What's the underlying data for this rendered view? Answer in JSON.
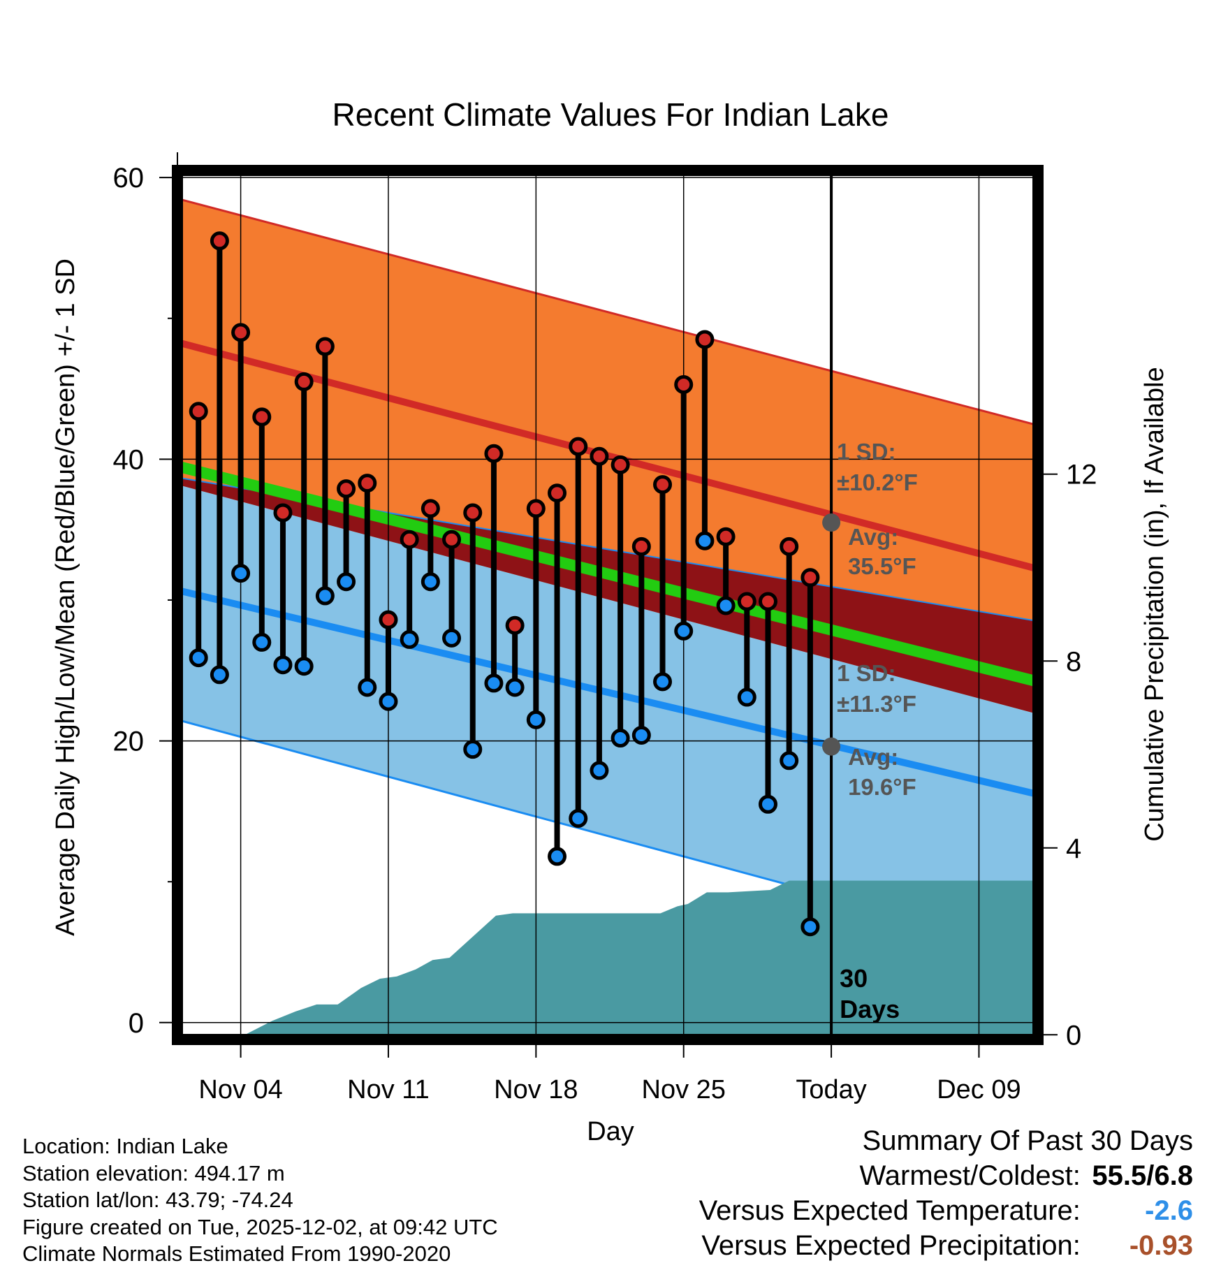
{
  "chart_data": {
    "type": "line",
    "title": "Recent Climate Values For Indian Lake",
    "xlabel": "Day",
    "ylabel": "Average Daily High/Low/Mean (Red/Blue/Green) +/- 1 SD",
    "y2label": "Cumulative Precipitation (in), If Available",
    "ylim": [
      -1.2,
      60.5
    ],
    "y2lim": [
      -0.1,
      18.5
    ],
    "xlim": [
      0,
      40.8
    ],
    "today_day": 31,
    "xticks": [
      {
        "day": 3,
        "label": "Nov 04"
      },
      {
        "day": 10,
        "label": "Nov 11"
      },
      {
        "day": 17,
        "label": "Nov 18"
      },
      {
        "day": 24,
        "label": "Nov 25"
      },
      {
        "day": 31,
        "label": "Today"
      },
      {
        "day": 38,
        "label": "Dec 09"
      }
    ],
    "yticks": [
      0,
      20,
      40,
      60
    ],
    "y2ticks": [
      0,
      4,
      8,
      12
    ],
    "normals": {
      "high_mean": {
        "start": 48.3,
        "end": 32.2
      },
      "high_upper": {
        "start": 58.5,
        "end": 42.4
      },
      "low_mean": {
        "start": 30.7,
        "end": 16.2
      },
      "low_lower": {
        "start": 21.5,
        "end": 5.0
      },
      "low_upper": {
        "start": 38.7,
        "end": 28.5
      },
      "mean": {
        "start": 39.5,
        "end": 24.2
      },
      "high_lower": {
        "start": 38.2,
        "end": 21.9
      }
    },
    "annotations": {
      "high_sd_label": "1 SD:",
      "high_sd_value": "±10.2°F",
      "high_avg_label": "Avg:",
      "high_avg_value": "35.5°F",
      "high_avg": 35.5,
      "low_sd_label": "1 SD:",
      "low_sd_value": "±11.3°F",
      "low_avg_label": "Avg:",
      "low_avg_value": "19.6°F",
      "low_avg": 19.6,
      "days_line1": "30",
      "days_line2": "Days"
    },
    "days": [
      1,
      2,
      3,
      4,
      5,
      6,
      7,
      8,
      9,
      10,
      11,
      12,
      13,
      14,
      15,
      16,
      17,
      18,
      19,
      20,
      21,
      22,
      23,
      24,
      25,
      26,
      27,
      28,
      29,
      30
    ],
    "highs": [
      43.4,
      55.5,
      49.0,
      43.0,
      36.2,
      45.5,
      48.0,
      37.9,
      38.3,
      28.6,
      34.3,
      36.5,
      34.3,
      36.2,
      40.4,
      28.2,
      36.5,
      37.6,
      40.9,
      40.2,
      39.6,
      33.8,
      38.2,
      45.3,
      48.5,
      34.5,
      29.9,
      29.9,
      33.8,
      31.6
    ],
    "lows": [
      25.9,
      24.7,
      31.9,
      27.0,
      25.4,
      25.3,
      30.3,
      31.3,
      23.8,
      22.8,
      27.2,
      31.3,
      27.3,
      19.4,
      24.1,
      23.8,
      21.5,
      11.8,
      14.5,
      17.9,
      20.2,
      20.4,
      24.2,
      27.8,
      34.2,
      29.6,
      23.1,
      15.5,
      18.6,
      6.8
    ],
    "precip_cumulative": [
      {
        "day": 0.3,
        "value": 0
      },
      {
        "day": 3.2,
        "value": 0
      },
      {
        "day": 4.5,
        "value": 0.3
      },
      {
        "day": 5.6,
        "value": 0.5
      },
      {
        "day": 6.6,
        "value": 0.65
      },
      {
        "day": 7.6,
        "value": 0.65
      },
      {
        "day": 8.7,
        "value": 1.0
      },
      {
        "day": 9.6,
        "value": 1.2
      },
      {
        "day": 10.4,
        "value": 1.25
      },
      {
        "day": 11.3,
        "value": 1.4
      },
      {
        "day": 12.1,
        "value": 1.6
      },
      {
        "day": 12.9,
        "value": 1.65
      },
      {
        "day": 14.0,
        "value": 2.1
      },
      {
        "day": 15.1,
        "value": 2.55
      },
      {
        "day": 15.9,
        "value": 2.6
      },
      {
        "day": 19.0,
        "value": 2.6
      },
      {
        "day": 20.8,
        "value": 2.6
      },
      {
        "day": 22.9,
        "value": 2.6
      },
      {
        "day": 23.7,
        "value": 2.75
      },
      {
        "day": 24.2,
        "value": 2.8
      },
      {
        "day": 25.1,
        "value": 3.05
      },
      {
        "day": 26.1,
        "value": 3.05
      },
      {
        "day": 28.1,
        "value": 3.1
      },
      {
        "day": 29.0,
        "value": 3.3
      },
      {
        "day": 40.8,
        "value": 3.3
      }
    ]
  },
  "info": {
    "location": "Location: Indian Lake",
    "elevation": "Station elevation: 494.17 m",
    "latlon": "Station lat/lon: 43.79; -74.24",
    "created": "Figure created on Tue, 2025-12-02, at 09:42 UTC",
    "normals": "Climate Normals Estimated From 1990-2020"
  },
  "summary": {
    "title": "Summary Of Past 30 Days",
    "warmest_label": "Warmest/Coldest:",
    "warmest_value": "55.5/6.8",
    "temp_label": "Versus Expected Temperature:",
    "temp_value": "-2.6",
    "precip_label": "Versus Expected Precipitation:",
    "precip_value": "-0.93"
  },
  "colors": {
    "high_band": "#f47b2f",
    "high_line": "#d12a26",
    "low_band": "#86c2e6",
    "low_line": "#1a8cf2",
    "mean_line": "#22cc11",
    "gap_band": "#8e1216",
    "precip": "#4a9aa2",
    "annotation": "#555555",
    "temp_value": "#2e8fe8",
    "precip_value": "#a8502a"
  }
}
